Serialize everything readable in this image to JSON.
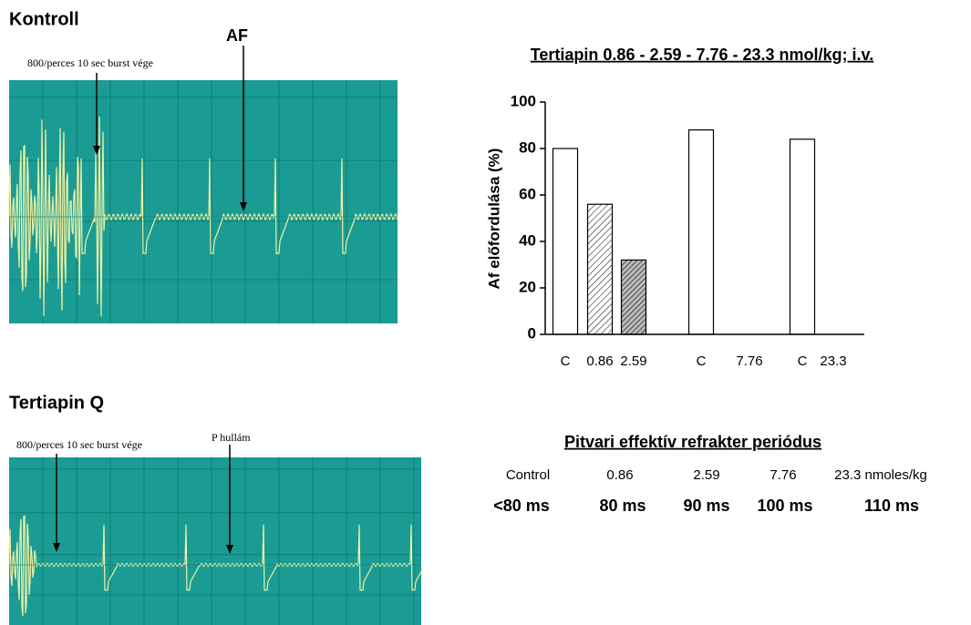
{
  "chart_data": {
    "type": "bar",
    "title": "Tertiapin 0.86 - 2.59 - 7.76 - 23.3 nmol/kg; i.v.",
    "y_label": "Af előfordulása (%)",
    "categories": [
      "C",
      "0.86",
      "2.59",
      "C",
      "7.76",
      "C",
      "23.3"
    ],
    "values": [
      80,
      56,
      32,
      88,
      0,
      84,
      0
    ],
    "fills": [
      "white",
      "hatched",
      "hatched-dark",
      "white",
      "white",
      "white",
      "white"
    ],
    "ylim": [
      0,
      100
    ],
    "yticks": [
      0,
      20,
      40,
      60,
      80,
      100
    ],
    "grid": false
  },
  "panels": [
    {
      "title": "Kontroll",
      "labels": [
        "800/perces 10 sec burst vége",
        "AF"
      ]
    },
    {
      "title": "Tertiapin Q",
      "labels": [
        "800/perces 10 sec burst vége",
        "P hullám"
      ]
    }
  ],
  "table": {
    "title": "Pitvari effektív refrakter periódus",
    "header": [
      "Control",
      "0.86",
      "2.59",
      "7.76",
      "23.3 nmoles/kg"
    ],
    "row": [
      "<80 ms",
      "80 ms",
      "90 ms",
      "100 ms",
      "110 ms"
    ]
  }
}
